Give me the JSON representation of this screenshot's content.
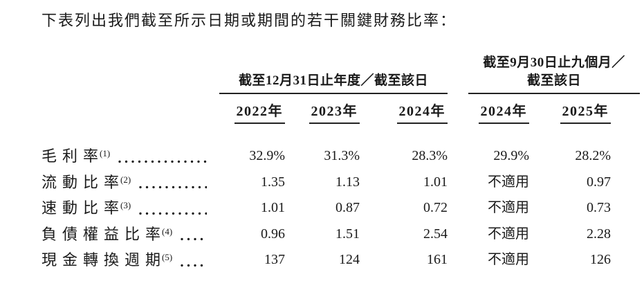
{
  "title": "下表列出我們截至所示日期或期間的若干關鍵財務比率：",
  "table": {
    "group_left": {
      "label": "截至12月31日止年度／截至該日"
    },
    "group_right": {
      "label_line1": "截至9月30日止九個月／",
      "label_line2": "截至該日"
    },
    "years": [
      "2022年",
      "2023年",
      "2024年",
      "2024年",
      "2025年"
    ],
    "rows": [
      {
        "label": "毛利率",
        "footnote": "(1)",
        "values": [
          "32.9%",
          "31.3%",
          "28.3%",
          "29.9%",
          "28.2%"
        ]
      },
      {
        "label": "流動比率",
        "footnote": "(2)",
        "values": [
          "1.35",
          "1.13",
          "1.01",
          "不適用",
          "0.97"
        ]
      },
      {
        "label": "速動比率",
        "footnote": "(3)",
        "values": [
          "1.01",
          "0.87",
          "0.72",
          "不適用",
          "0.73"
        ]
      },
      {
        "label": "負債權益比率",
        "footnote": "(4)",
        "values": [
          "0.96",
          "1.51",
          "2.54",
          "不適用",
          "2.28"
        ]
      },
      {
        "label": "現金轉換週期",
        "footnote": "(5)",
        "values": [
          "137",
          "124",
          "161",
          "不適用",
          "126"
        ]
      }
    ]
  },
  "colors": {
    "text": "#1a1a1a",
    "rule": "#222222",
    "background": "#ffffff"
  }
}
